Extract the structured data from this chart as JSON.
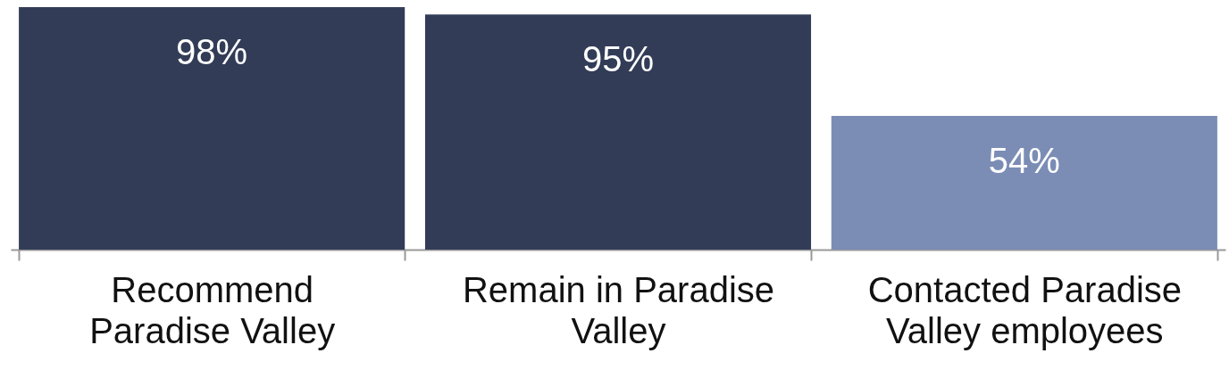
{
  "chart_data": {
    "type": "bar",
    "categories": [
      "Recommend Paradise Valley",
      "Remain in Paradise Valley",
      "Contacted Paradise Valley employees"
    ],
    "values": [
      98,
      95,
      54
    ],
    "colors": [
      "#323c57",
      "#323c57",
      "#7b8db5"
    ],
    "value_labels": [
      "98%",
      "95%",
      "54%"
    ]
  }
}
